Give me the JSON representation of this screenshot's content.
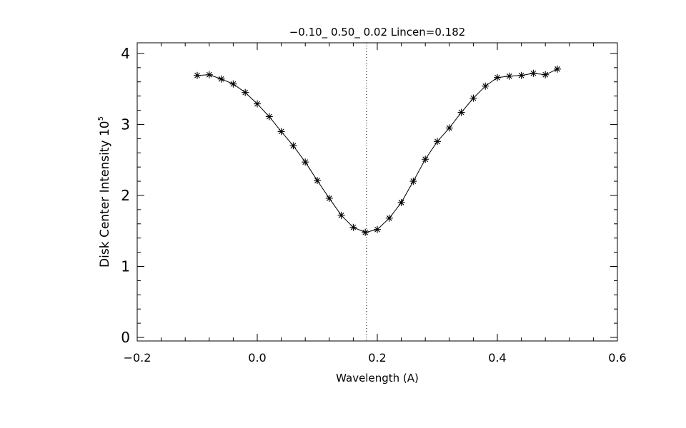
{
  "chart_data": {
    "type": "line",
    "title": "−0.10_ 0.50_ 0.02   Lincen=0.182",
    "xlabel": "Wavelength (A)",
    "ylabel": "Disk Center Intensity 10",
    "ylabel_exponent": "5",
    "xlim": [
      -0.2,
      0.6
    ],
    "ylim": [
      -0.05,
      4.15
    ],
    "xticks": [
      -0.2,
      0.0,
      0.2,
      0.4,
      0.6
    ],
    "xtick_labels": [
      "−0.2",
      "0.0",
      "0.2",
      "0.4",
      "0.6"
    ],
    "yticks": [
      0,
      1,
      2,
      3,
      4
    ],
    "ytick_labels": [
      "0",
      "1",
      "2",
      "3",
      "4"
    ],
    "grid": false,
    "marker": "asterisk",
    "line_center": 0.182,
    "series": [
      {
        "x": [
          -0.1,
          -0.08,
          -0.06,
          -0.04,
          -0.02,
          0.0,
          0.02,
          0.04,
          0.06,
          0.08,
          0.1,
          0.12,
          0.14,
          0.16,
          0.18,
          0.2,
          0.22,
          0.24,
          0.26,
          0.28,
          0.3,
          0.32,
          0.34,
          0.36,
          0.38,
          0.4,
          0.42,
          0.44,
          0.46,
          0.48,
          0.5
        ],
        "values": [
          3.69,
          3.7,
          3.64,
          3.57,
          3.45,
          3.29,
          3.11,
          2.9,
          2.7,
          2.47,
          2.21,
          1.96,
          1.72,
          1.55,
          1.48,
          1.52,
          1.68,
          1.9,
          2.2,
          2.51,
          2.76,
          2.95,
          3.17,
          3.37,
          3.54,
          3.66,
          3.68,
          3.69,
          3.72,
          3.7,
          3.78
        ]
      }
    ]
  }
}
